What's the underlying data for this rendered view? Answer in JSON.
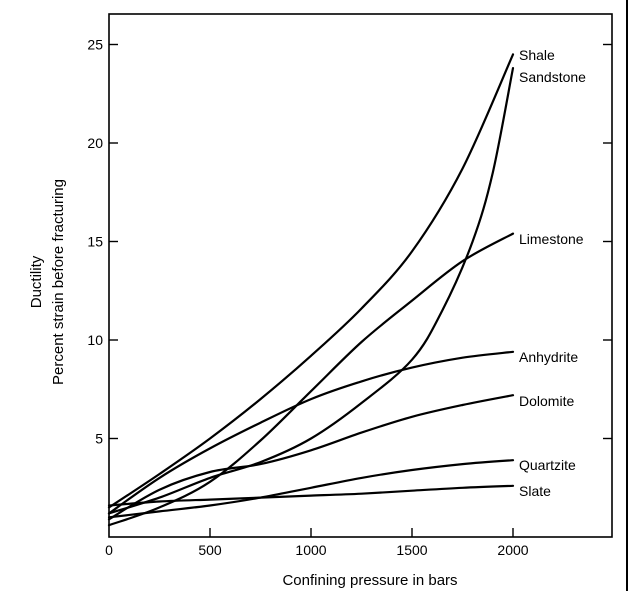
{
  "chart_data": {
    "type": "line",
    "xlabel": "Confining pressure in bars",
    "ylabel_lines": [
      "Ductility",
      "Percent strain before fracturing"
    ],
    "xlim": [
      0,
      2500
    ],
    "ylim": [
      0,
      26.5
    ],
    "x_ticks": [
      0,
      500,
      1000,
      1500,
      2000
    ],
    "y_ticks": [
      5,
      10,
      15,
      20,
      25
    ],
    "grid": false,
    "legend": "labels at right end of each curve",
    "series": [
      {
        "name": "Shale",
        "x": [
          0,
          250,
          500,
          750,
          1000,
          1250,
          1500,
          1750,
          2000
        ],
        "y": [
          1.5,
          3.2,
          5.0,
          7.0,
          9.2,
          11.6,
          14.5,
          18.7,
          24.5
        ]
      },
      {
        "name": "Sandstone",
        "x": [
          0,
          250,
          500,
          750,
          1000,
          1250,
          1500,
          1650,
          1800,
          1900,
          2000
        ],
        "y": [
          1.2,
          2.0,
          3.0,
          3.8,
          5.0,
          6.8,
          9.0,
          11.5,
          15.0,
          18.5,
          23.8
        ]
      },
      {
        "name": "Limestone",
        "x": [
          0,
          250,
          500,
          750,
          1000,
          1250,
          1500,
          1750,
          2000
        ],
        "y": [
          0.6,
          1.5,
          2.8,
          4.9,
          7.4,
          9.9,
          12.0,
          14.0,
          15.4
        ]
      },
      {
        "name": "Anhydrite",
        "x": [
          0,
          250,
          500,
          750,
          1000,
          1250,
          1500,
          1750,
          2000
        ],
        "y": [
          1.2,
          3.0,
          4.5,
          5.8,
          7.0,
          7.9,
          8.6,
          9.1,
          9.4
        ]
      },
      {
        "name": "Dolomite",
        "x": [
          0,
          250,
          500,
          750,
          1000,
          1250,
          1500,
          1750,
          2000
        ],
        "y": [
          0.9,
          2.4,
          3.3,
          3.7,
          4.4,
          5.3,
          6.1,
          6.7,
          7.2
        ]
      },
      {
        "name": "Quartzite",
        "x": [
          0,
          250,
          500,
          750,
          1000,
          1250,
          1500,
          1750,
          2000
        ],
        "y": [
          1.0,
          1.3,
          1.6,
          2.0,
          2.5,
          3.0,
          3.4,
          3.7,
          3.9
        ]
      },
      {
        "name": "Slate",
        "x": [
          0,
          250,
          500,
          750,
          1000,
          1250,
          1500,
          1750,
          2000
        ],
        "y": [
          1.6,
          1.8,
          1.9,
          2.0,
          2.1,
          2.2,
          2.35,
          2.5,
          2.6
        ]
      }
    ]
  }
}
